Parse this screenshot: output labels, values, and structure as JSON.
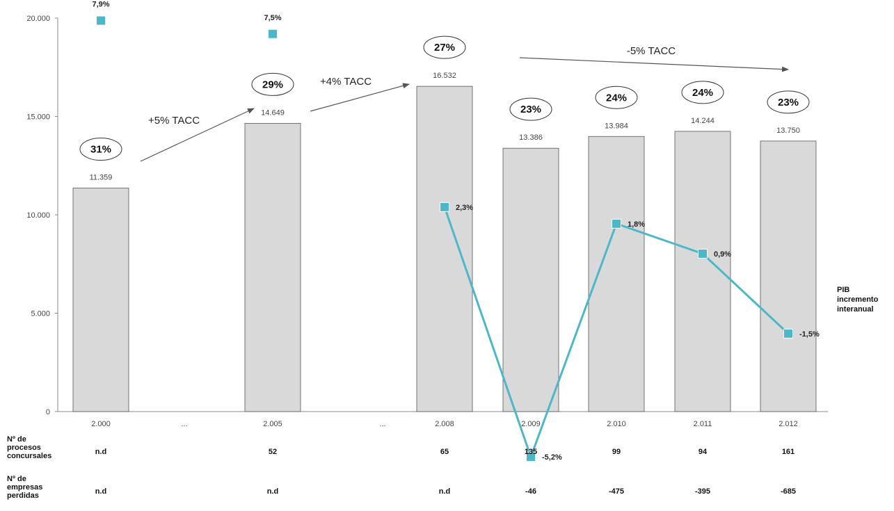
{
  "chart_data": {
    "type": "bar",
    "categories": [
      "2.000",
      "...",
      "2.005",
      "...",
      "2.008",
      "2.009",
      "2.010",
      "2.011",
      "2.012"
    ],
    "ylim": [
      0,
      20000
    ],
    "yticks": [
      0,
      5000,
      10000,
      15000,
      20000
    ],
    "ytick_labels": [
      "0",
      "5.000",
      "10.000",
      "15.000",
      "20.000"
    ],
    "grid": false,
    "bars": [
      {
        "category": "2.000",
        "value": 11359,
        "label": "11.359",
        "share": "31%"
      },
      {
        "category": "2.005",
        "value": 14649,
        "label": "14.649",
        "share": "29%"
      },
      {
        "category": "2.008",
        "value": 16532,
        "label": "16.532",
        "share": "27%"
      },
      {
        "category": "2.009",
        "value": 13386,
        "label": "13.386",
        "share": "23%"
      },
      {
        "category": "2.010",
        "value": 13984,
        "label": "13.984",
        "share": "24%"
      },
      {
        "category": "2.011",
        "value": 14244,
        "label": "14.244",
        "share": "24%"
      },
      {
        "category": "2.012",
        "value": 13750,
        "label": "13.750",
        "share": "23%"
      }
    ],
    "gdp_series": {
      "name_lines": [
        "PIB",
        "incremento",
        "interanual"
      ],
      "color": "#4bb8c9",
      "points": [
        {
          "category": "2.000",
          "value": 7.9,
          "label": "7,9%",
          "connected": false
        },
        {
          "category": "2.005",
          "value": 7.5,
          "label": "7,5%",
          "connected": false
        },
        {
          "category": "2.008",
          "value": 2.3,
          "label": "2,3%",
          "connected": true
        },
        {
          "category": "2.009",
          "value": -5.2,
          "label": "-5,2%",
          "connected": true,
          "color": "#e8272b"
        },
        {
          "category": "2.010",
          "value": 1.8,
          "label": "1,8%",
          "connected": true
        },
        {
          "category": "2.011",
          "value": 0.9,
          "label": "0,9%",
          "connected": true
        },
        {
          "category": "2.012",
          "value": -1.5,
          "label": "-1,5%",
          "connected": true
        }
      ]
    },
    "trend_annotations": [
      {
        "label": "+5% TACC",
        "from": "2.000",
        "to": "2.005"
      },
      {
        "label": "+4% TACC",
        "from": "2.005",
        "to": "2.008"
      },
      {
        "label": "-5% TACC",
        "from": "2.008",
        "to": "2.012"
      }
    ],
    "rows": [
      {
        "header_lines": [
          "Nº de",
          "procesos",
          "concursales"
        ],
        "values": {
          "2.000": "n.d",
          "2.005": "52",
          "2.008": "65",
          "2.009": "135",
          "2.010": "99",
          "2.011": "94",
          "2.012": "161"
        }
      },
      {
        "header_lines": [
          "Nº de",
          "empresas",
          "perdidas"
        ],
        "values": {
          "2.000": "n.d",
          "2.005": "n.d",
          "2.008": "n.d",
          "2.009": "-46",
          "2.010": "-475",
          "2.011": "-395",
          "2.012": "-685"
        }
      }
    ],
    "colors": {
      "bar": "#d9d9d9",
      "bar_stroke": "#555555",
      "line": "#4bb8c9",
      "negative": "#e8272b"
    }
  }
}
